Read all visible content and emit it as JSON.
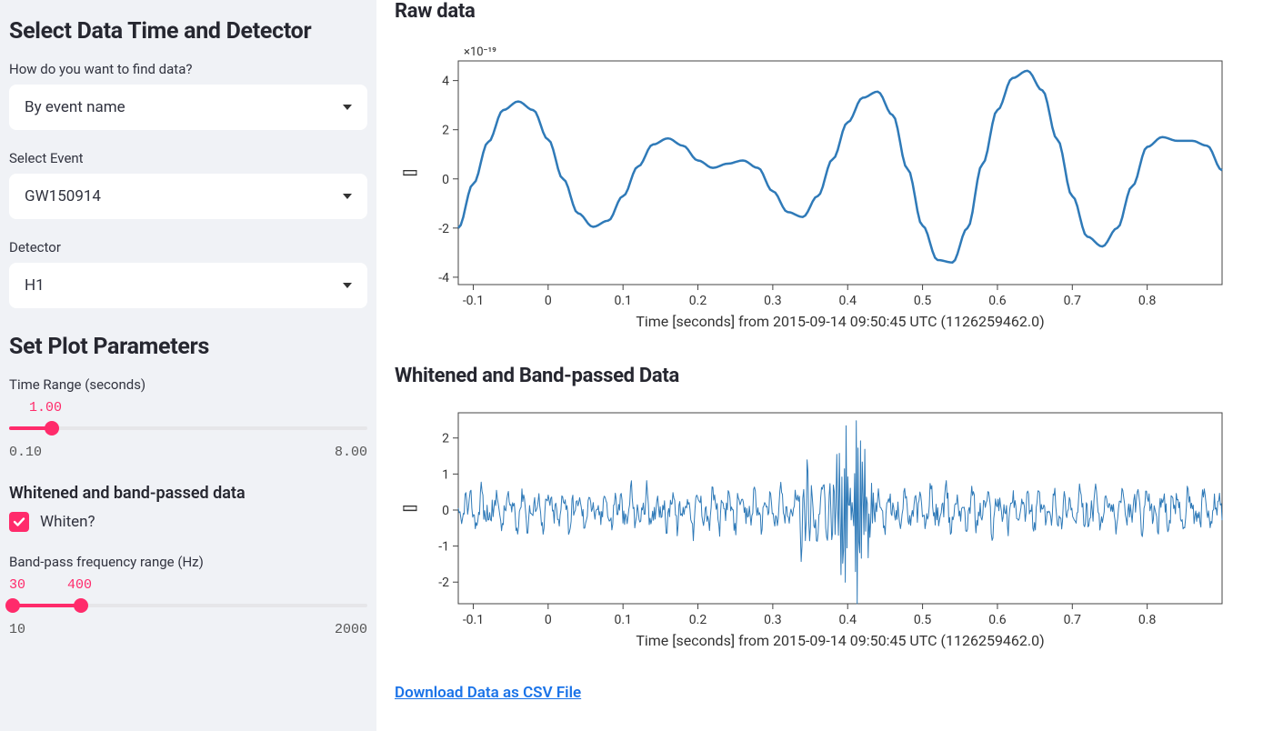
{
  "sidebar": {
    "section1_title": "Select Data Time and Detector",
    "find_data_label": "How do you want to find data?",
    "find_data_value": "By event name",
    "event_label": "Select Event",
    "event_value": "GW150914",
    "detector_label": "Detector",
    "detector_value": "H1",
    "section2_title": "Set Plot Parameters",
    "timerange": {
      "label": "Time Range (seconds)",
      "value": "1.00",
      "min": "0.10",
      "max": "8.00",
      "fill_pct": 12,
      "thumb_pct": 12
    },
    "whiten_title": "Whitened and band-passed data",
    "whiten_checkbox": {
      "checked": true,
      "label": "Whiten?"
    },
    "bandpass": {
      "label": "Band-pass frequency range (Hz)",
      "lo": "30",
      "hi": "400",
      "min": "10",
      "max": "2000",
      "lo_pct": 1,
      "hi_pct": 20
    }
  },
  "main": {
    "raw_title": "Raw data",
    "whitened_title": "Whitened and Band-passed Data",
    "download_text": "Download Data as CSV File",
    "xaxis_label": "Time [seconds] from 2015-09-14 09:50:45 UTC (1126259462.0)",
    "yaxis_label": "[]",
    "raw_chart": {
      "type": "line",
      "line_color": "#2f7ab8",
      "line_width": 2.5,
      "background_color": "#ffffff",
      "border_color": "#444444",
      "grid_color": "#e8e8e8",
      "xlim": [
        -0.12,
        0.9
      ],
      "xticks": [
        -0.1,
        0,
        0.1,
        0.2,
        0.3,
        0.4,
        0.5,
        0.6,
        0.7,
        0.8
      ],
      "ylim": [
        -4.3,
        4.8
      ],
      "yticks": [
        -4,
        -2,
        0,
        2,
        4
      ],
      "y_exponent": "×10⁻¹⁹",
      "data_x": [
        -0.12,
        -0.1,
        -0.08,
        -0.06,
        -0.04,
        -0.02,
        0.0,
        0.02,
        0.04,
        0.06,
        0.08,
        0.1,
        0.12,
        0.14,
        0.16,
        0.18,
        0.2,
        0.22,
        0.24,
        0.26,
        0.28,
        0.3,
        0.32,
        0.34,
        0.36,
        0.38,
        0.4,
        0.42,
        0.44,
        0.46,
        0.48,
        0.5,
        0.52,
        0.54,
        0.56,
        0.58,
        0.6,
        0.62,
        0.64,
        0.66,
        0.68,
        0.7,
        0.72,
        0.74,
        0.76,
        0.78,
        0.8,
        0.82,
        0.84,
        0.86,
        0.88,
        0.9
      ],
      "data_y": [
        -2.0,
        -0.2,
        1.5,
        2.8,
        3.15,
        2.8,
        1.6,
        0.0,
        -1.4,
        -1.95,
        -1.7,
        -0.7,
        0.5,
        1.4,
        1.65,
        1.35,
        0.75,
        0.45,
        0.62,
        0.75,
        0.45,
        -0.5,
        -1.35,
        -1.55,
        -0.7,
        0.8,
        2.3,
        3.3,
        3.55,
        2.6,
        0.4,
        -1.9,
        -3.3,
        -3.4,
        -2.0,
        0.6,
        2.8,
        4.1,
        4.4,
        3.6,
        1.6,
        -0.7,
        -2.35,
        -2.75,
        -2.0,
        -0.3,
        1.3,
        1.7,
        1.55,
        1.55,
        1.35,
        0.35
      ]
    },
    "white_chart": {
      "type": "line",
      "line_color": "#2f7ab8",
      "line_width": 1.0,
      "background_color": "#ffffff",
      "border_color": "#444444",
      "xlim": [
        -0.12,
        0.9
      ],
      "xticks": [
        -0.1,
        0,
        0.1,
        0.2,
        0.3,
        0.4,
        0.5,
        0.6,
        0.7,
        0.8
      ],
      "ylim": [
        -2.6,
        2.7
      ],
      "yticks": [
        -2,
        -1,
        0,
        1,
        2
      ],
      "noise_amp": 0.55,
      "chirp_center": 0.415,
      "chirp_amp": 2.55
    }
  }
}
